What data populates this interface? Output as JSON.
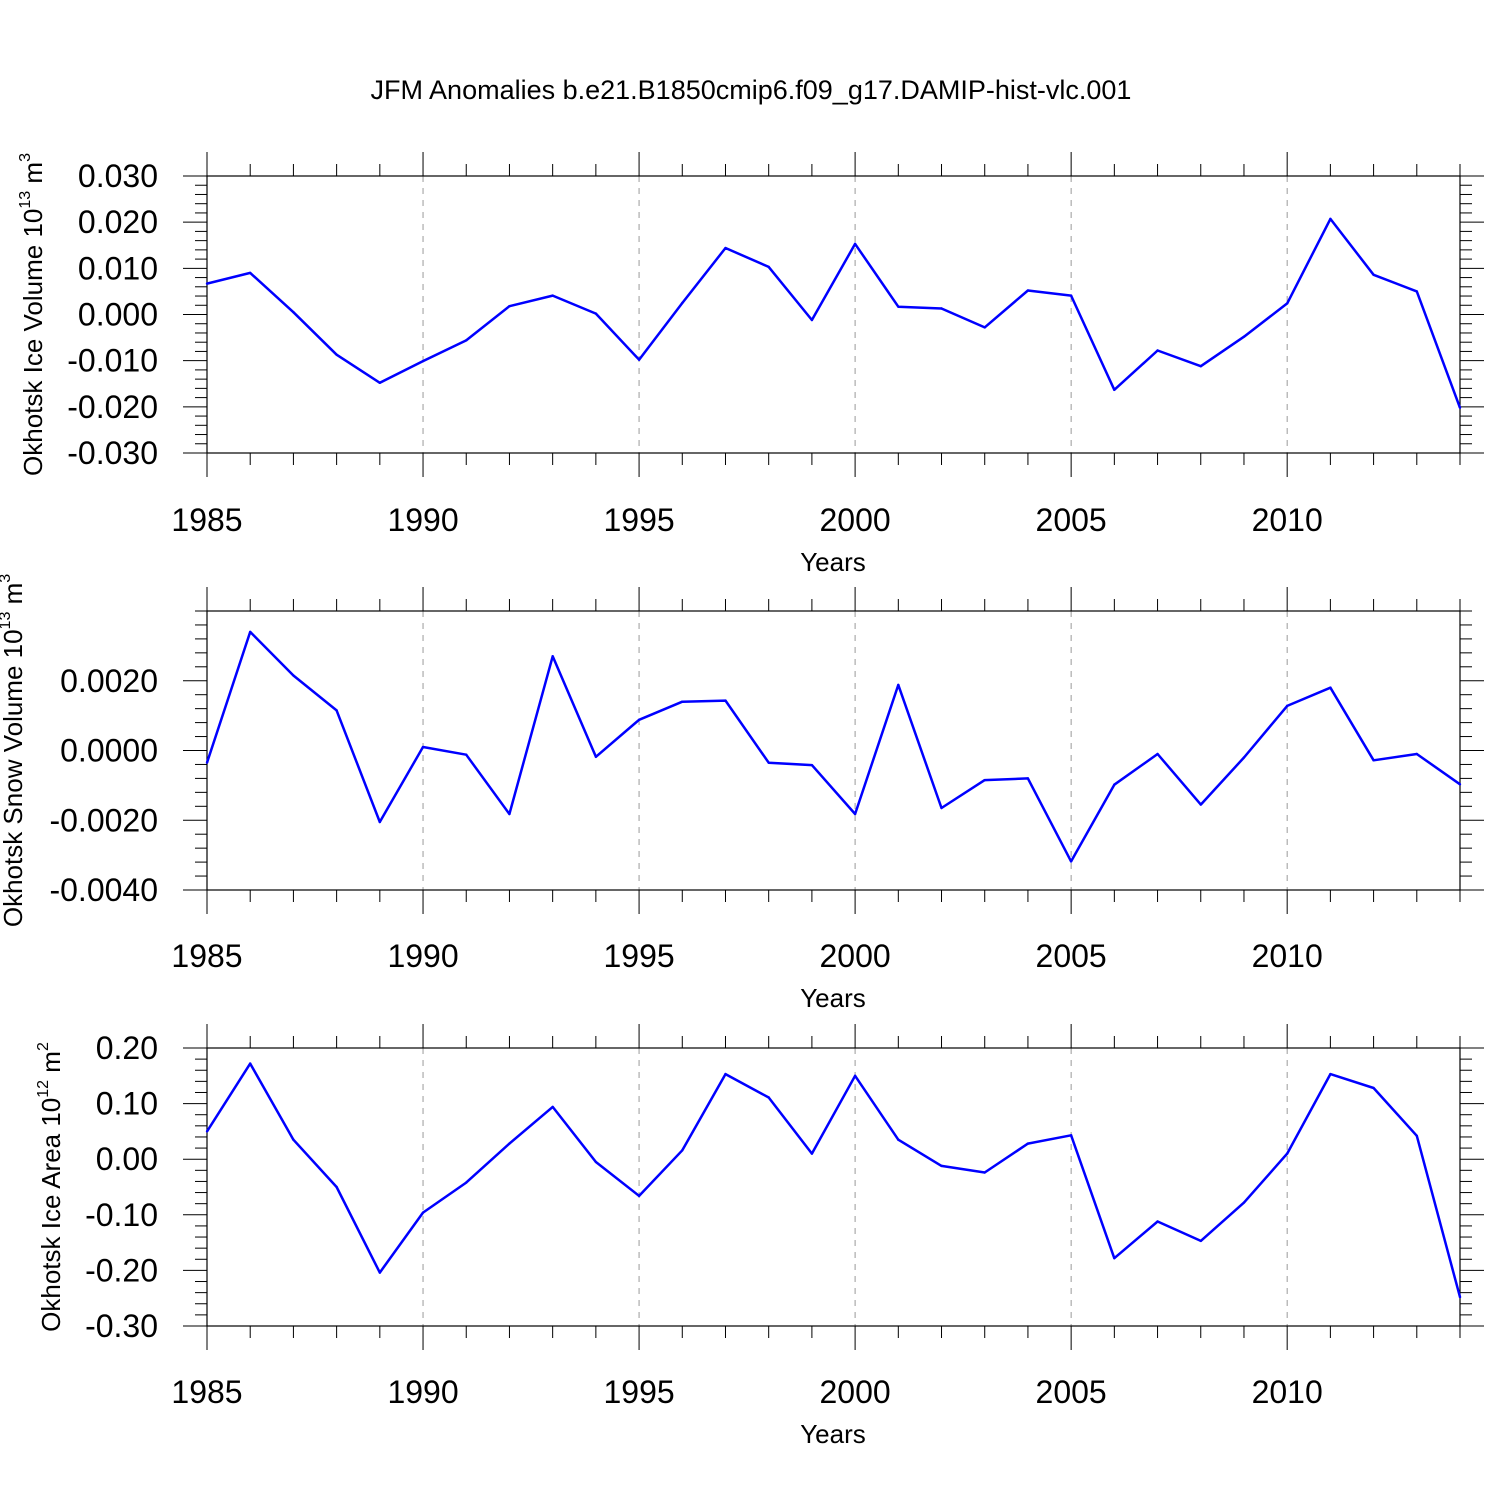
{
  "title": "JFM Anomalies b.e21.B1850cmip6.f09_g17.DAMIP-hist-vlc.001",
  "colors": {
    "line": "#0000ff",
    "axes": "#000000",
    "grid": "#9a9a9a"
  },
  "chart_data": [
    {
      "type": "line",
      "ylabel": {
        "text": "Okhotsk Ice Volume 10",
        "exp": "13",
        "unit": "m",
        "unit_exp": "3"
      },
      "xlabel": "Years",
      "xlim": [
        1985,
        2014
      ],
      "ylim": [
        -0.03,
        0.03
      ],
      "grid": "vertical dashed at labeled years",
      "x_ticks": [
        "1985",
        "1990",
        "1995",
        "2000",
        "2005",
        "2010"
      ],
      "y_ticks": [
        "-0.030",
        "-0.020",
        "-0.010",
        "0.000",
        "0.010",
        "0.020",
        "0.030"
      ],
      "y_tick_values": [
        -0.03,
        -0.02,
        -0.01,
        0.0,
        0.01,
        0.02,
        0.03
      ],
      "x": [
        1985,
        1986,
        1987,
        1988,
        1989,
        1990,
        1991,
        1992,
        1993,
        1994,
        1995,
        1996,
        1997,
        1998,
        1999,
        2000,
        2001,
        2002,
        2003,
        2004,
        2005,
        2006,
        2007,
        2008,
        2009,
        2010,
        2011,
        2012,
        2013,
        2014
      ],
      "values": [
        0.0067,
        0.009,
        0.0005,
        -0.0087,
        -0.0148,
        -0.0101,
        -0.0056,
        0.0018,
        0.0041,
        0.0002,
        -0.0098,
        0.0025,
        0.0144,
        0.0103,
        -0.0012,
        0.0153,
        0.0017,
        0.0013,
        -0.0028,
        0.0052,
        0.0041,
        -0.0163,
        -0.0078,
        -0.0112,
        -0.0048,
        0.0024,
        0.0207,
        0.0086,
        0.005,
        -0.0202
      ]
    },
    {
      "type": "line",
      "ylabel": {
        "text": "Okhotsk Snow Volume 10",
        "exp": "13",
        "unit": "m",
        "unit_exp": "3"
      },
      "xlabel": "Years",
      "xlim": [
        1985,
        2014
      ],
      "ylim": [
        -0.004,
        0.004
      ],
      "grid": "vertical dashed at labeled years",
      "x_ticks": [
        "1985",
        "1990",
        "1995",
        "2000",
        "2005",
        "2010"
      ],
      "y_ticks": [
        "-0.0040",
        "-0.0020",
        "0.0000",
        "0.0020"
      ],
      "y_tick_values": [
        -0.004,
        -0.002,
        0.0,
        0.002
      ],
      "x": [
        1985,
        1986,
        1987,
        1988,
        1989,
        1990,
        1991,
        1992,
        1993,
        1994,
        1995,
        1996,
        1997,
        1998,
        1999,
        2000,
        2001,
        2002,
        2003,
        2004,
        2005,
        2006,
        2007,
        2008,
        2009,
        2010,
        2011,
        2012,
        2013,
        2014
      ],
      "values": [
        -0.00035,
        0.0034,
        0.00215,
        0.00115,
        -0.00205,
        0.0001,
        -0.00012,
        -0.00182,
        0.0027,
        -0.00018,
        0.00088,
        0.0014,
        0.00143,
        -0.00035,
        -0.00042,
        -0.00182,
        0.00188,
        -0.00165,
        -0.00085,
        -0.0008,
        -0.00318,
        -0.00098,
        -0.0001,
        -0.00155,
        -0.0002,
        0.00128,
        0.0018,
        -0.00028,
        -0.0001,
        -0.00097
      ]
    },
    {
      "type": "line",
      "ylabel": {
        "text": "Okhotsk Ice Area 10",
        "exp": "12",
        "unit": "m",
        "unit_exp": "2"
      },
      "xlabel": "Years",
      "xlim": [
        1985,
        2014
      ],
      "ylim": [
        -0.3,
        0.2
      ],
      "grid": "vertical dashed at labeled years",
      "x_ticks": [
        "1985",
        "1990",
        "1995",
        "2000",
        "2005",
        "2010"
      ],
      "y_ticks": [
        "-0.30",
        "-0.20",
        "-0.10",
        "0.00",
        "0.10",
        "0.20"
      ],
      "y_tick_values": [
        -0.3,
        -0.2,
        -0.1,
        0.0,
        0.1,
        0.2
      ],
      "x": [
        1985,
        1986,
        1987,
        1988,
        1989,
        1990,
        1991,
        1992,
        1993,
        1994,
        1995,
        1996,
        1997,
        1998,
        1999,
        2000,
        2001,
        2002,
        2003,
        2004,
        2005,
        2006,
        2007,
        2008,
        2009,
        2010,
        2011,
        2012,
        2013,
        2014
      ],
      "values": [
        0.05,
        0.172,
        0.035,
        -0.05,
        -0.204,
        -0.096,
        -0.042,
        0.028,
        0.094,
        -0.005,
        -0.066,
        0.016,
        0.153,
        0.111,
        0.01,
        0.15,
        0.035,
        -0.012,
        -0.024,
        0.028,
        0.043,
        -0.178,
        -0.112,
        -0.147,
        -0.078,
        0.01,
        0.153,
        0.128,
        0.042,
        -0.248
      ]
    }
  ]
}
